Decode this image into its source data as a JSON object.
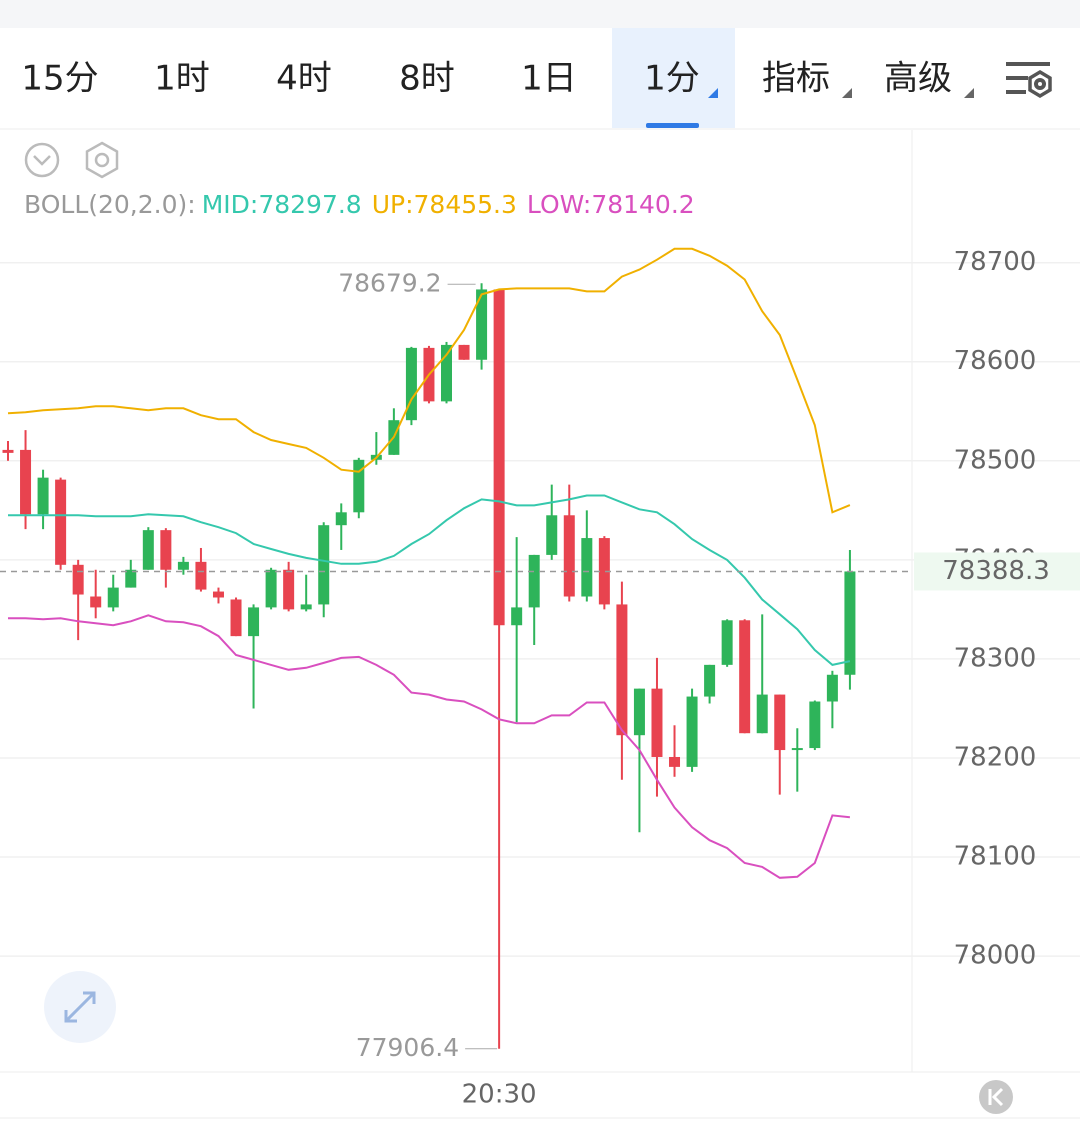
{
  "tabs": [
    "15分",
    "1时",
    "4时",
    "8时",
    "1日",
    "1分",
    "指标",
    "高级"
  ],
  "selected_tab": 5,
  "chart_data": {
    "type": "candlestick",
    "indicator": "BOLL(20,2.0):",
    "categories": [
      null,
      null,
      null,
      null,
      null,
      null,
      null,
      null,
      null,
      null,
      null,
      null,
      null,
      null,
      null,
      null,
      null,
      null,
      null,
      null,
      null,
      null,
      null,
      null,
      null,
      null,
      null,
      null,
      "20:30",
      null,
      null,
      null,
      null,
      null,
      null,
      null,
      null,
      null,
      null,
      null,
      null,
      null,
      null,
      null,
      null,
      null,
      null,
      null,
      null
    ],
    "open": [
      78511,
      78511,
      78446,
      78481,
      78395,
      78363,
      78352,
      78372,
      78390,
      78430,
      78390,
      78398,
      78368,
      78360,
      78323,
      78352,
      78390,
      78350,
      78355,
      78435,
      78448,
      78501,
      78506,
      78541,
      78614,
      78560,
      78617,
      78602,
      78673,
      78334,
      78352,
      78405,
      78445,
      78363,
      78422,
      78355,
      78223,
      78270,
      78201,
      78191,
      78262,
      78294,
      78339,
      78225,
      78264,
      78208,
      78210,
      78257,
      78284
    ],
    "high": [
      78520,
      78531,
      78491,
      78483,
      78400,
      78390,
      78385,
      78400,
      78433,
      78432,
      78403,
      78412,
      78372,
      78362,
      78355,
      78392,
      78398,
      78385,
      78438,
      78457,
      78503,
      78529,
      78553,
      78615,
      78616,
      78620,
      78617,
      78679.2,
      78673,
      78423,
      78405,
      78476,
      78476,
      78450,
      78424,
      78378,
      78270,
      78301,
      78233,
      78270,
      78294,
      78340,
      78340,
      78345,
      78264,
      78230,
      78258,
      78288,
      78410
    ],
    "low": [
      78500,
      78431,
      78431,
      78390,
      78319,
      78341,
      78348,
      78372,
      78390,
      78372,
      78385,
      78368,
      78356,
      78323,
      78250,
      78350,
      78348,
      78348,
      78342,
      78410,
      78442,
      78496,
      78506,
      78536,
      78558,
      78558,
      78602,
      78592,
      77906.4,
      78236,
      78314,
      78400,
      78358,
      78358,
      78350,
      78178,
      78125,
      78161,
      78181,
      78186,
      78255,
      78292,
      78225,
      78225,
      78163,
      78166,
      78208,
      78230,
      78269
    ],
    "close": [
      78508,
      78446,
      78483,
      78395,
      78365,
      78352,
      78372,
      78390,
      78430,
      78390,
      78398,
      78370,
      78362,
      78323,
      78352,
      78390,
      78350,
      78355,
      78435,
      78448,
      78501,
      78506,
      78541,
      78614,
      78560,
      78617,
      78602,
      78673,
      78334,
      78352,
      78405,
      78445,
      78363,
      78422,
      78355,
      78223,
      78270,
      78201,
      78191,
      78262,
      78294,
      78339,
      78225,
      78264,
      78208,
      78210,
      78257,
      78284,
      78388.3
    ],
    "up_color": "#2eb45a",
    "down_color": "#e8434f",
    "series": [
      {
        "name": "MID:",
        "color": "#35c8ad",
        "values": [
          78445,
          78445,
          78445,
          78445,
          78445,
          78444,
          78444,
          78444,
          78446,
          78445,
          78444,
          78438,
          78433,
          78427,
          78416,
          78411,
          78406,
          78402,
          78399,
          78396,
          78396,
          78398,
          78404,
          78416,
          78426,
          78440,
          78452,
          78461,
          78459,
          78455,
          78455,
          78458,
          78461,
          78465,
          78465,
          78458,
          78451,
          78448,
          78436,
          78421,
          78410,
          78400,
          78382,
          78360,
          78345,
          78330,
          78309,
          78294,
          78297.8
        ]
      },
      {
        "name": "UP:",
        "color": "#f0b000",
        "values": [
          78548,
          78549,
          78551,
          78552,
          78553,
          78555,
          78555,
          78553,
          78551,
          78553,
          78553,
          78546,
          78542,
          78542,
          78529,
          78521,
          78517,
          78513,
          78503,
          78491,
          78489,
          78503,
          78524,
          78562,
          78587,
          78607,
          78632,
          78668,
          78673,
          78674,
          78674,
          78674,
          78674,
          78671,
          78671,
          78686,
          78693,
          78703,
          78714,
          78714,
          78707,
          78697,
          78683,
          78651,
          78627,
          78582,
          78536,
          78448,
          78455.3
        ]
      },
      {
        "name": "LOW:",
        "color": "#d94fbf",
        "values": [
          78341,
          78341,
          78340,
          78341,
          78338,
          78336,
          78334,
          78338,
          78344,
          78338,
          78337,
          78333,
          78323,
          78304,
          78299,
          78294,
          78289,
          78291,
          78296,
          78301,
          78302,
          78294,
          78284,
          78266,
          78264,
          78259,
          78257,
          78249,
          78239,
          78235,
          78235,
          78243,
          78243,
          78256,
          78256,
          78228,
          78208,
          78178,
          78150,
          78130,
          78117,
          78109,
          78094,
          78090,
          78079,
          78080,
          78094,
          78142,
          78140.2
        ]
      }
    ],
    "ylim": [
      77885,
      78733
    ],
    "yticks": [
      78000,
      78100,
      78200,
      78300,
      78400,
      78500,
      78600,
      78700
    ],
    "grid": true
  }
}
